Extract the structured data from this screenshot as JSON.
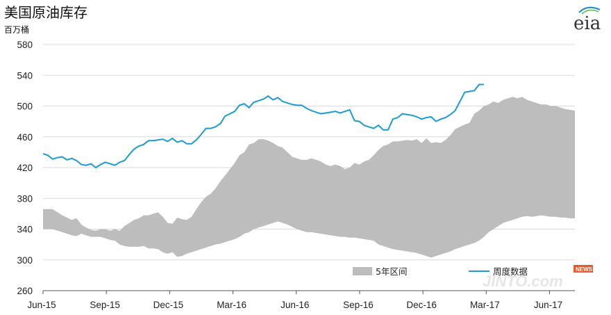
{
  "title": "美国原油库存",
  "unit": "百万桶",
  "logo_text": "eia",
  "watermark": {
    "text": "JINTO.com",
    "badge": "NEWS"
  },
  "colors": {
    "band": "#bdbdbd",
    "line": "#1a9bd6",
    "grid": "#d9d9d9",
    "axis": "#555555"
  },
  "chart_data": {
    "type": "line",
    "ylim": [
      260,
      580
    ],
    "yticks": [
      260,
      300,
      340,
      380,
      420,
      460,
      500,
      540,
      580
    ],
    "xlabels": [
      "Jun-15",
      "Sep-15",
      "Dec-15",
      "Mar-16",
      "Jun-16",
      "Sep-16",
      "Dec-16",
      "Mar-17",
      "Jun-17"
    ],
    "week_count": 112,
    "legend": [
      {
        "label": "5年区间",
        "kind": "band"
      },
      {
        "label": "周度数据",
        "kind": "line"
      }
    ],
    "series": [
      {
        "name": "周度数据",
        "kind": "line",
        "values": [
          438,
          436,
          431,
          433,
          434,
          430,
          432,
          429,
          424,
          423,
          425,
          420,
          424,
          427,
          425,
          423,
          427,
          429,
          437,
          444,
          448,
          450,
          455,
          455,
          456,
          457,
          454,
          458,
          453,
          455,
          451,
          451,
          456,
          463,
          471,
          471,
          473,
          477,
          487,
          490,
          493,
          501,
          503,
          498,
          505,
          507,
          509,
          513,
          508,
          511,
          506,
          504,
          502,
          501,
          501,
          497,
          494,
          492,
          490,
          491,
          492,
          493,
          491,
          493,
          495,
          481,
          480,
          475,
          473,
          471,
          475,
          469,
          469,
          483,
          485,
          490,
          489,
          488,
          486,
          483,
          485,
          486,
          480,
          483,
          485,
          489,
          494,
          506,
          518,
          519,
          520,
          528,
          528
        ],
        "start_week": 0
      },
      {
        "name": "5年区间",
        "kind": "band",
        "upper": [
          366,
          366,
          366,
          362,
          358,
          355,
          352,
          354,
          346,
          342,
          339,
          338,
          340,
          340,
          338,
          340,
          338,
          344,
          348,
          352,
          354,
          358,
          358,
          360,
          362,
          356,
          348,
          347,
          355,
          353,
          352,
          356,
          366,
          375,
          382,
          386,
          393,
          402,
          410,
          418,
          426,
          436,
          440,
          450,
          452,
          457,
          457,
          455,
          452,
          448,
          446,
          440,
          434,
          432,
          430,
          430,
          432,
          430,
          428,
          424,
          422,
          424,
          422,
          418,
          420,
          426,
          424,
          428,
          430,
          436,
          443,
          448,
          450,
          454,
          454,
          455,
          456,
          455,
          457,
          452,
          458,
          452,
          453,
          452,
          456,
          462,
          470,
          473,
          476,
          478,
          490,
          494,
          500,
          502,
          506,
          504,
          508,
          510,
          512,
          510,
          512,
          508,
          506,
          504,
          502,
          502,
          500,
          500,
          498,
          496,
          495,
          494
        ],
        "lower": [
          340,
          340,
          340,
          338,
          336,
          334,
          332,
          331,
          334,
          332,
          330,
          330,
          330,
          328,
          326,
          325,
          320,
          318,
          317,
          317,
          317,
          318,
          315,
          315,
          314,
          310,
          308,
          310,
          304,
          305,
          308,
          310,
          312,
          314,
          316,
          318,
          320,
          321,
          323,
          325,
          327,
          330,
          334,
          336,
          340,
          342,
          344,
          346,
          348,
          350,
          348,
          346,
          343,
          340,
          338,
          336,
          336,
          335,
          334,
          333,
          332,
          331,
          330,
          330,
          329,
          329,
          328,
          327,
          326,
          325,
          320,
          318,
          316,
          314,
          313,
          312,
          311,
          310,
          309,
          307,
          305,
          303,
          305,
          307,
          309,
          311,
          314,
          316,
          318,
          320,
          322,
          325,
          330,
          336,
          340,
          344,
          348,
          350,
          352,
          354,
          356,
          357,
          356,
          357,
          358,
          357,
          356,
          356,
          355,
          355,
          354,
          354
        ]
      }
    ]
  }
}
